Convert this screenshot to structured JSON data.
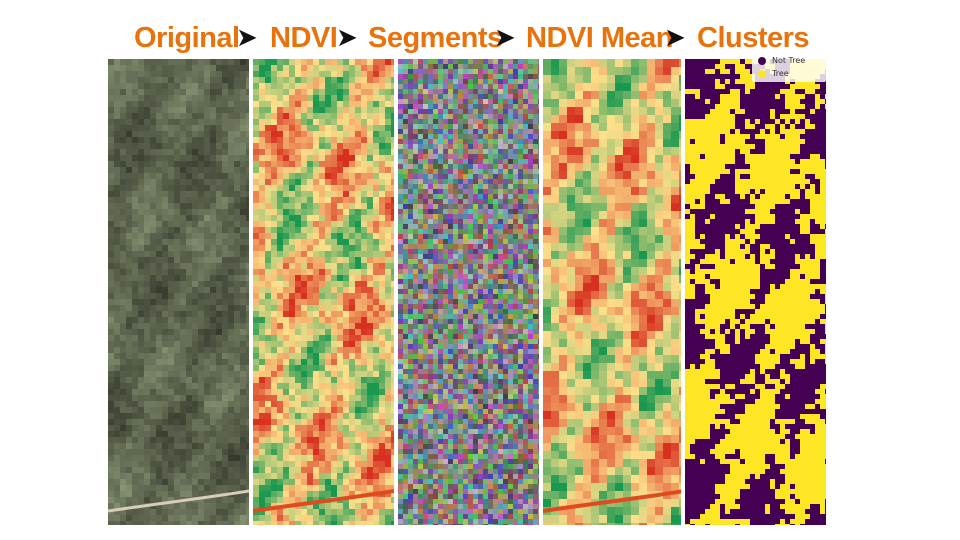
{
  "pipeline": {
    "steps": [
      {
        "label": "Original"
      },
      {
        "label": "NDVI"
      },
      {
        "label": "Segments"
      },
      {
        "label": "NDVI Mean"
      },
      {
        "label": "Clusters"
      }
    ],
    "arrow_glyph": "➤"
  },
  "legend": {
    "items": [
      {
        "label": "Not Tree",
        "color": "#440154"
      },
      {
        "label": "Tree",
        "color": "#fde725"
      }
    ]
  },
  "colors": {
    "title_accent": "#e8720c",
    "ndvi_low": "#d7301f",
    "ndvi_mid": "#fee08b",
    "ndvi_high": "#1a9850"
  }
}
